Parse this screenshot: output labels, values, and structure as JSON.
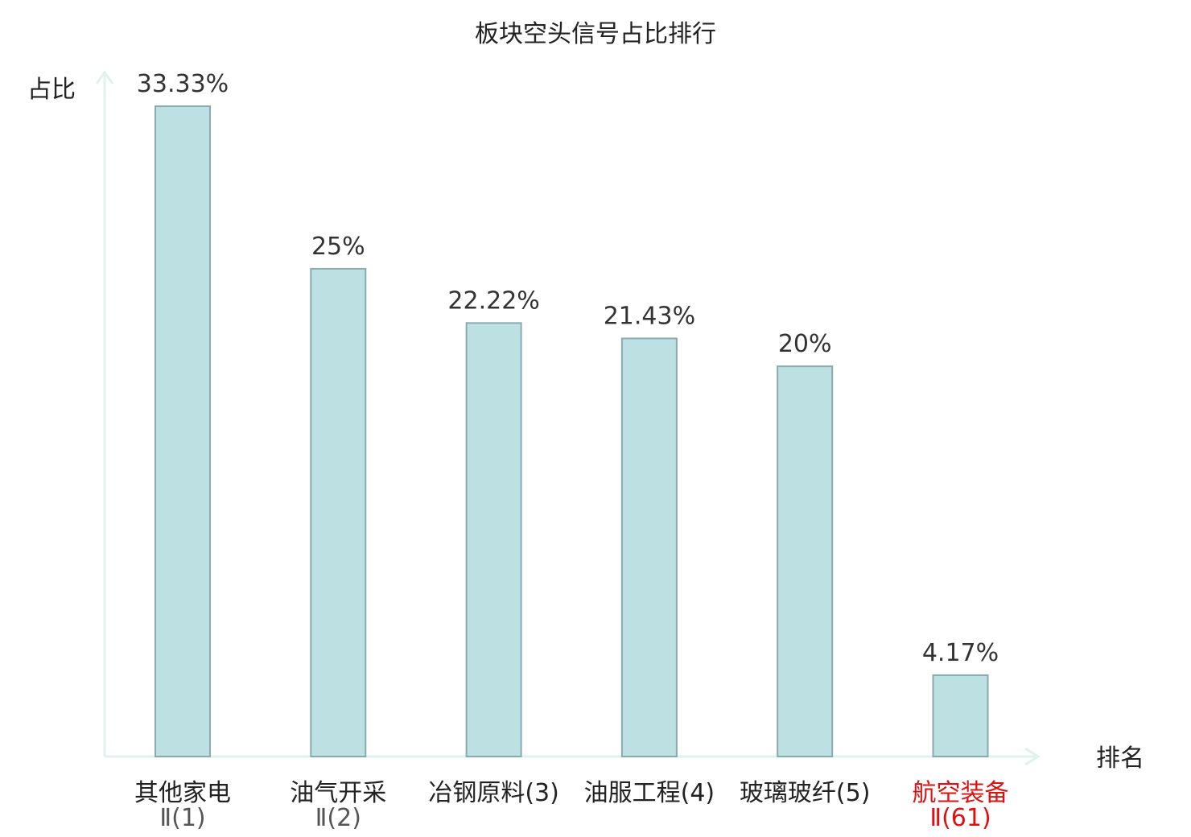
{
  "chart_data": {
    "type": "bar",
    "title": "板块空头信号占比排行",
    "ylabel": "占比",
    "xlabel": "排名",
    "ylim": [
      0,
      34.5
    ],
    "unit": "%",
    "categories": [
      {
        "name": "其他家电",
        "rank": "Ⅱ(1)",
        "highlight": false
      },
      {
        "name": "油气开采",
        "rank": "Ⅱ(2)",
        "highlight": false
      },
      {
        "name": "冶钢原料(3)",
        "rank": "",
        "highlight": false
      },
      {
        "name": "油服工程(4)",
        "rank": "",
        "highlight": false
      },
      {
        "name": "玻璃玻纤(5)",
        "rank": "",
        "highlight": false
      },
      {
        "name": "航空装备",
        "rank": "Ⅱ(61)",
        "highlight": true
      }
    ],
    "values": [
      33.33,
      25,
      22.22,
      21.43,
      20,
      4.17
    ],
    "value_labels": [
      "33.33%",
      "25%",
      "22.22%",
      "21.43%",
      "20%",
      "4.17%"
    ],
    "grid": false,
    "legend": "none"
  },
  "colors": {
    "bar_fill": "#bde0e3",
    "bar_stroke": "#8aaaae",
    "axis": "#dff2ee",
    "highlight_text": "#e01010"
  }
}
